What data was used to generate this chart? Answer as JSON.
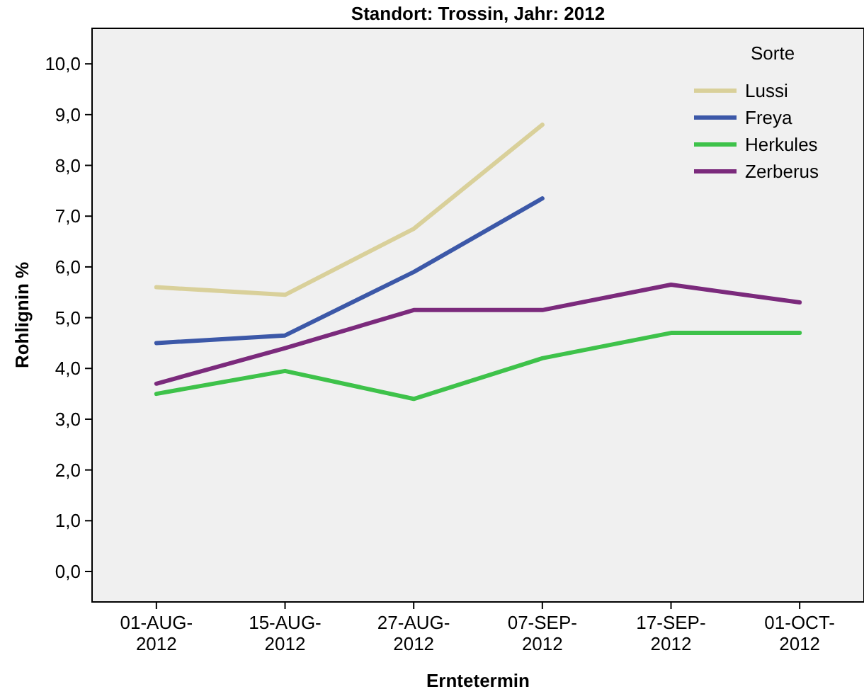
{
  "chart_data": {
    "type": "line",
    "title": "Standort: Trossin, Jahr: 2012",
    "xlabel": "Erntetermin",
    "ylabel": "Rohlignin %",
    "legend_title": "Sorte",
    "legend": "top right",
    "categories": [
      "01-AUG-2012",
      "15-AUG-2012",
      "27-AUG-2012",
      "07-SEP-2012",
      "17-SEP-2012",
      "01-OCT-2012"
    ],
    "ylim": [
      -0.6,
      10.7
    ],
    "yticks": [
      {
        "value": 0,
        "label": "0,0"
      },
      {
        "value": 1,
        "label": "1,0"
      },
      {
        "value": 2,
        "label": "2,0"
      },
      {
        "value": 3,
        "label": "3,0"
      },
      {
        "value": 4,
        "label": "4,0"
      },
      {
        "value": 5,
        "label": "5,0"
      },
      {
        "value": 6,
        "label": "6,0"
      },
      {
        "value": 7,
        "label": "7,0"
      },
      {
        "value": 8,
        "label": "8,0"
      },
      {
        "value": 9,
        "label": "9,0"
      },
      {
        "value": 10,
        "label": "10,0"
      }
    ],
    "series": [
      {
        "name": "Lussi",
        "color": "#d9d09a",
        "values": [
          5.6,
          5.45,
          6.75,
          8.8,
          null,
          null
        ]
      },
      {
        "name": "Freya",
        "color": "#3c58a8",
        "values": [
          4.5,
          4.65,
          5.9,
          7.35,
          null,
          null
        ]
      },
      {
        "name": "Herkules",
        "color": "#3ec24a",
        "values": [
          3.5,
          3.95,
          3.4,
          4.2,
          4.7,
          4.7
        ]
      },
      {
        "name": "Zerberus",
        "color": "#7b2a7c",
        "values": [
          3.7,
          4.4,
          5.15,
          5.15,
          5.65,
          5.3
        ]
      }
    ]
  }
}
